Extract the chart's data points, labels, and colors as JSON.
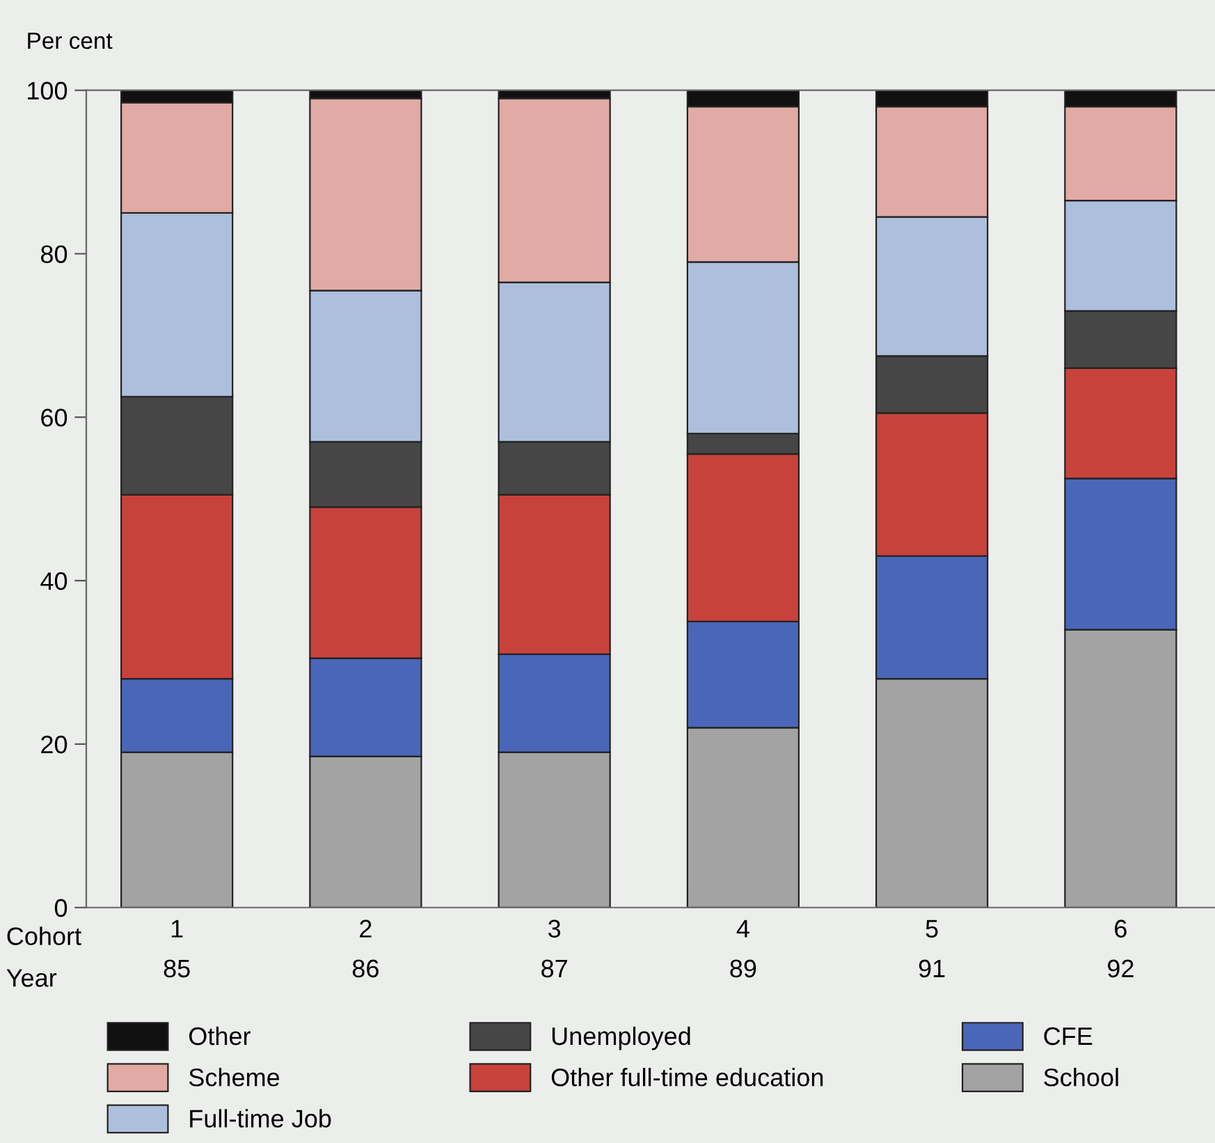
{
  "chart_data": {
    "type": "bar",
    "stacked": true,
    "ylabel": "Per cent",
    "categories": [
      "1\n85",
      "2\n86",
      "3\n87",
      "4\n89",
      "5\n91",
      "6\n92"
    ],
    "annotations": [
      "Cohort",
      "Year"
    ],
    "series": [
      {
        "name": "School",
        "color": "#a3a3a3",
        "values": [
          19,
          18.5,
          19,
          22,
          28,
          34
        ]
      },
      {
        "name": "CFE",
        "color": "#4a66b8",
        "values": [
          9,
          12,
          12,
          13,
          15,
          18.5
        ]
      },
      {
        "name": "Other full-time education",
        "color": "#c8423c",
        "values": [
          22.5,
          18.5,
          19.5,
          20.5,
          17.5,
          13.5
        ]
      },
      {
        "name": "Unemployed",
        "color": "#464646",
        "values": [
          12,
          8,
          6.5,
          2.5,
          7,
          7
        ]
      },
      {
        "name": "Full-time Job",
        "color": "#aebfde",
        "values": [
          22.5,
          18.5,
          19.5,
          21,
          17,
          13.5
        ]
      },
      {
        "name": "Scheme",
        "color": "#e2aaa4",
        "values": [
          13.5,
          23.5,
          22.5,
          19,
          13.5,
          11.5
        ]
      },
      {
        "name": "Other",
        "color": "#111111",
        "values": [
          1.5,
          1,
          1,
          2,
          2,
          2
        ]
      }
    ],
    "ylim": [
      0,
      100
    ],
    "yticks": [
      0,
      20,
      40,
      60,
      80,
      100
    ],
    "grid": false,
    "legend": "bottom"
  }
}
